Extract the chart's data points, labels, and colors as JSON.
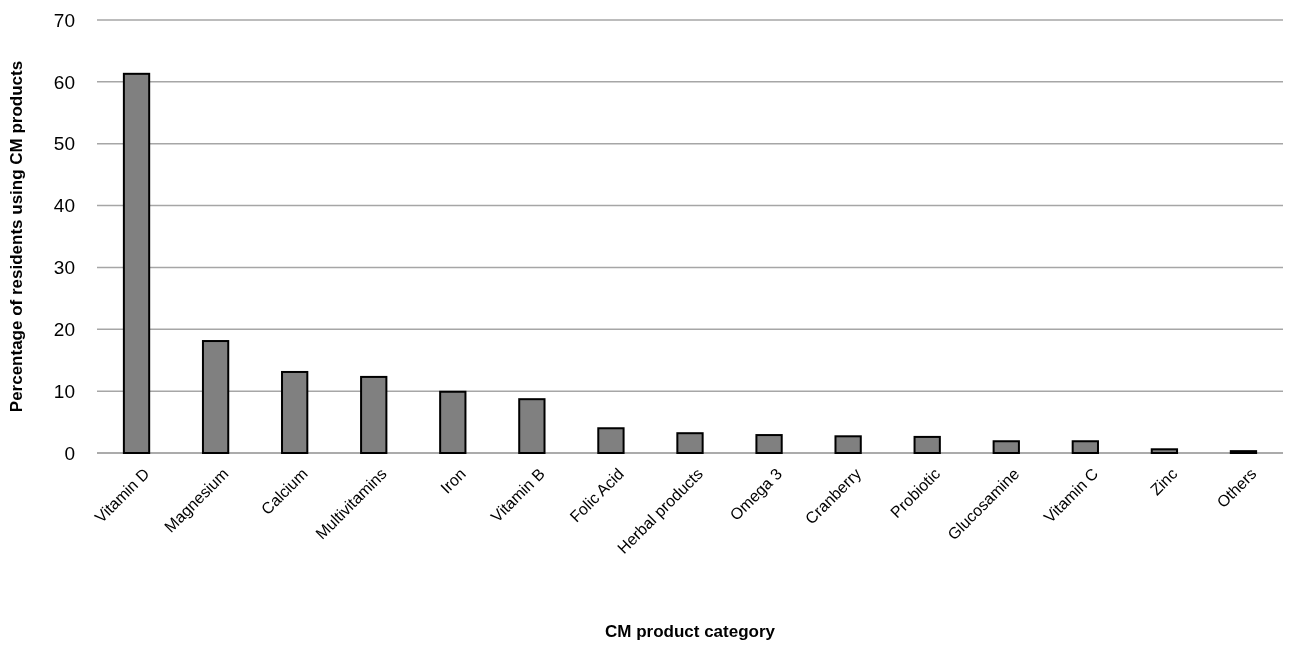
{
  "chart_data": {
    "type": "bar",
    "xlabel": "CM product category",
    "ylabel": "Percentage of residents using CM products",
    "categories": [
      "Vitamin D",
      "Magnesium",
      "Calcium",
      "Multivitamins",
      "Iron",
      "Vitamin B",
      "Folic Acid",
      "Herbal products",
      "Omega 3",
      "Cranberry",
      "Probiotic",
      "Glucosamine",
      "Vitamin C",
      "Zinc",
      "Others"
    ],
    "values": [
      61.3,
      18.1,
      13.1,
      12.3,
      9.9,
      8.7,
      4.0,
      3.2,
      2.9,
      2.7,
      2.6,
      1.9,
      1.9,
      0.6,
      0.3
    ],
    "color": "#808080",
    "ylim": [
      0,
      70
    ],
    "yticks": [
      0,
      10,
      20,
      30,
      40,
      50,
      60,
      70
    ],
    "grid": "y"
  }
}
